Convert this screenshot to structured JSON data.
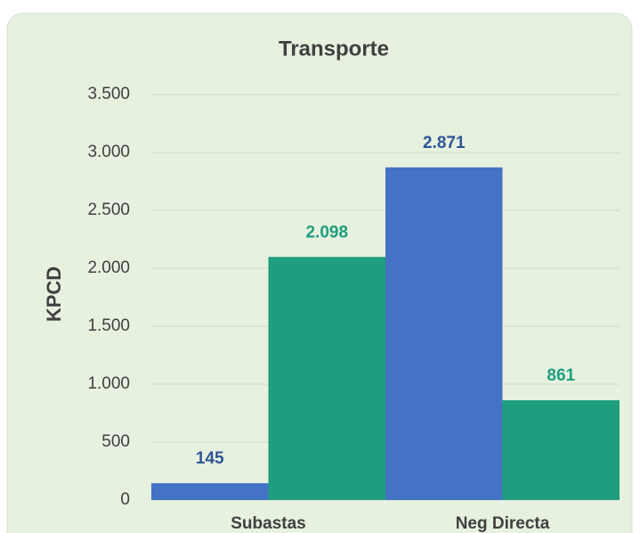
{
  "chart_data": {
    "type": "bar",
    "title": "Transporte",
    "ylabel": "KPCD",
    "categories": [
      "Subastas",
      "Neg Directa"
    ],
    "series": [
      {
        "color": "#4472c4",
        "values": [
          145,
          2871
        ],
        "value_labels": [
          "145",
          "2.871"
        ]
      },
      {
        "color": "#1e9e7e",
        "values": [
          2098,
          861
        ],
        "value_labels": [
          "2.098",
          "861"
        ]
      }
    ],
    "ylim": [
      0,
      3500
    ],
    "yticks": [
      0,
      500,
      {
        "value": 1000,
        "label": "1.000"
      },
      {
        "value": 1500,
        "label": "1.500"
      },
      {
        "value": 2000,
        "label": "2.000"
      },
      {
        "value": 2500,
        "label": "2.500"
      },
      {
        "value": 3000,
        "label": "3.000"
      },
      {
        "value": 3500,
        "label": "3.500"
      }
    ],
    "grid": true
  }
}
